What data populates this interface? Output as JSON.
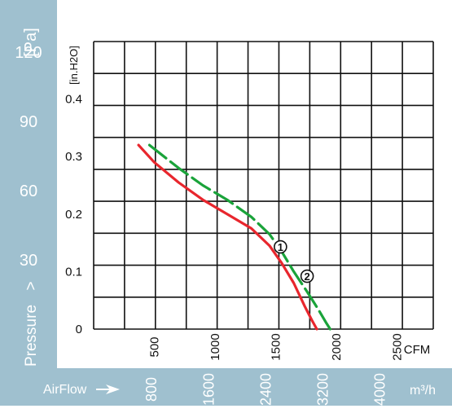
{
  "chart_data": {
    "type": "line",
    "x_axis": {
      "label": "CFM",
      "range": [
        0,
        2800
      ],
      "ticks": [
        "500",
        "1000",
        "1500",
        "2000",
        "2500"
      ],
      "tick_values": [
        500,
        1000,
        1500,
        2000,
        2500
      ]
    },
    "x_axis_secondary": {
      "label": "AirFlow",
      "unit": "m³/h",
      "ticks": [
        "800",
        "1600",
        "2400",
        "3200",
        "4000"
      ],
      "tick_values": [
        800,
        1600,
        2400,
        3200,
        4000
      ]
    },
    "y_axis": {
      "unit": "[in.H2O]",
      "range": [
        0,
        0.5
      ],
      "ticks": [
        "0",
        "0.1",
        "0.2",
        "0.3",
        "0.4"
      ],
      "tick_values": [
        0,
        0.1,
        0.2,
        0.3,
        0.4
      ]
    },
    "y_axis_secondary": {
      "label": "Pressure",
      "unit": "[Pa]",
      "ticks": [
        "30",
        "60",
        "90",
        "120"
      ],
      "tick_values": [
        30,
        60,
        90,
        120
      ]
    },
    "grid": true,
    "series": [
      {
        "name": "1",
        "color": "#e8262d",
        "dashed": false,
        "x": [
          370,
          500,
          700,
          900,
          1100,
          1300,
          1450,
          1550,
          1650,
          1740,
          1800,
          1840
        ],
        "y": [
          0.32,
          0.29,
          0.255,
          0.225,
          0.2,
          0.175,
          0.145,
          0.115,
          0.08,
          0.04,
          0.015,
          0
        ]
      },
      {
        "name": "2",
        "color": "#1aa33a",
        "dashed": true,
        "x": [
          460,
          700,
          900,
          1100,
          1300,
          1450,
          1550,
          1650,
          1760,
          1850,
          1920,
          1950
        ],
        "y": [
          0.32,
          0.28,
          0.25,
          0.225,
          0.195,
          0.165,
          0.135,
          0.1,
          0.065,
          0.035,
          0.01,
          0
        ]
      }
    ],
    "markers": [
      {
        "label": "1",
        "x": 1540,
        "y": 0.143
      },
      {
        "label": "2",
        "x": 1760,
        "y": 0.092
      }
    ]
  }
}
